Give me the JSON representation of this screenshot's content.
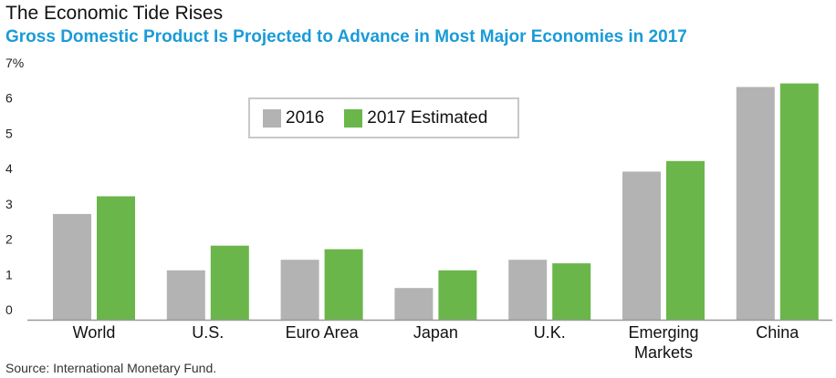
{
  "header": {
    "title": "The Economic Tide Rises",
    "subtitle": "Gross Domestic Product Is Projected to Advance in Most Major Economies in 2017"
  },
  "footer": {
    "source": "Source: International Monetary Fund."
  },
  "colors": {
    "series_2016": "#b3b3b3",
    "series_2017": "#6ab64a",
    "axis": "#999999",
    "subtitle": "#1a9bd7"
  },
  "chart_data": {
    "type": "bar",
    "categories": [
      [
        "World"
      ],
      [
        "U.S."
      ],
      [
        "Euro Area"
      ],
      [
        "Japan"
      ],
      [
        "U.K."
      ],
      [
        "Emerging",
        "Markets"
      ],
      [
        "China"
      ]
    ],
    "series": [
      {
        "name": "2016",
        "values": [
          3.0,
          1.4,
          1.7,
          0.9,
          1.7,
          4.2,
          6.6
        ]
      },
      {
        "name": "2017 Estimated",
        "values": [
          3.5,
          2.1,
          2.0,
          1.4,
          1.6,
          4.5,
          6.7
        ]
      }
    ],
    "y_ticks": [
      "0",
      "1",
      "2",
      "3",
      "4",
      "5",
      "6",
      "7%"
    ],
    "ylim": [
      0,
      7
    ],
    "grid": false,
    "legend_position": "top-center"
  }
}
